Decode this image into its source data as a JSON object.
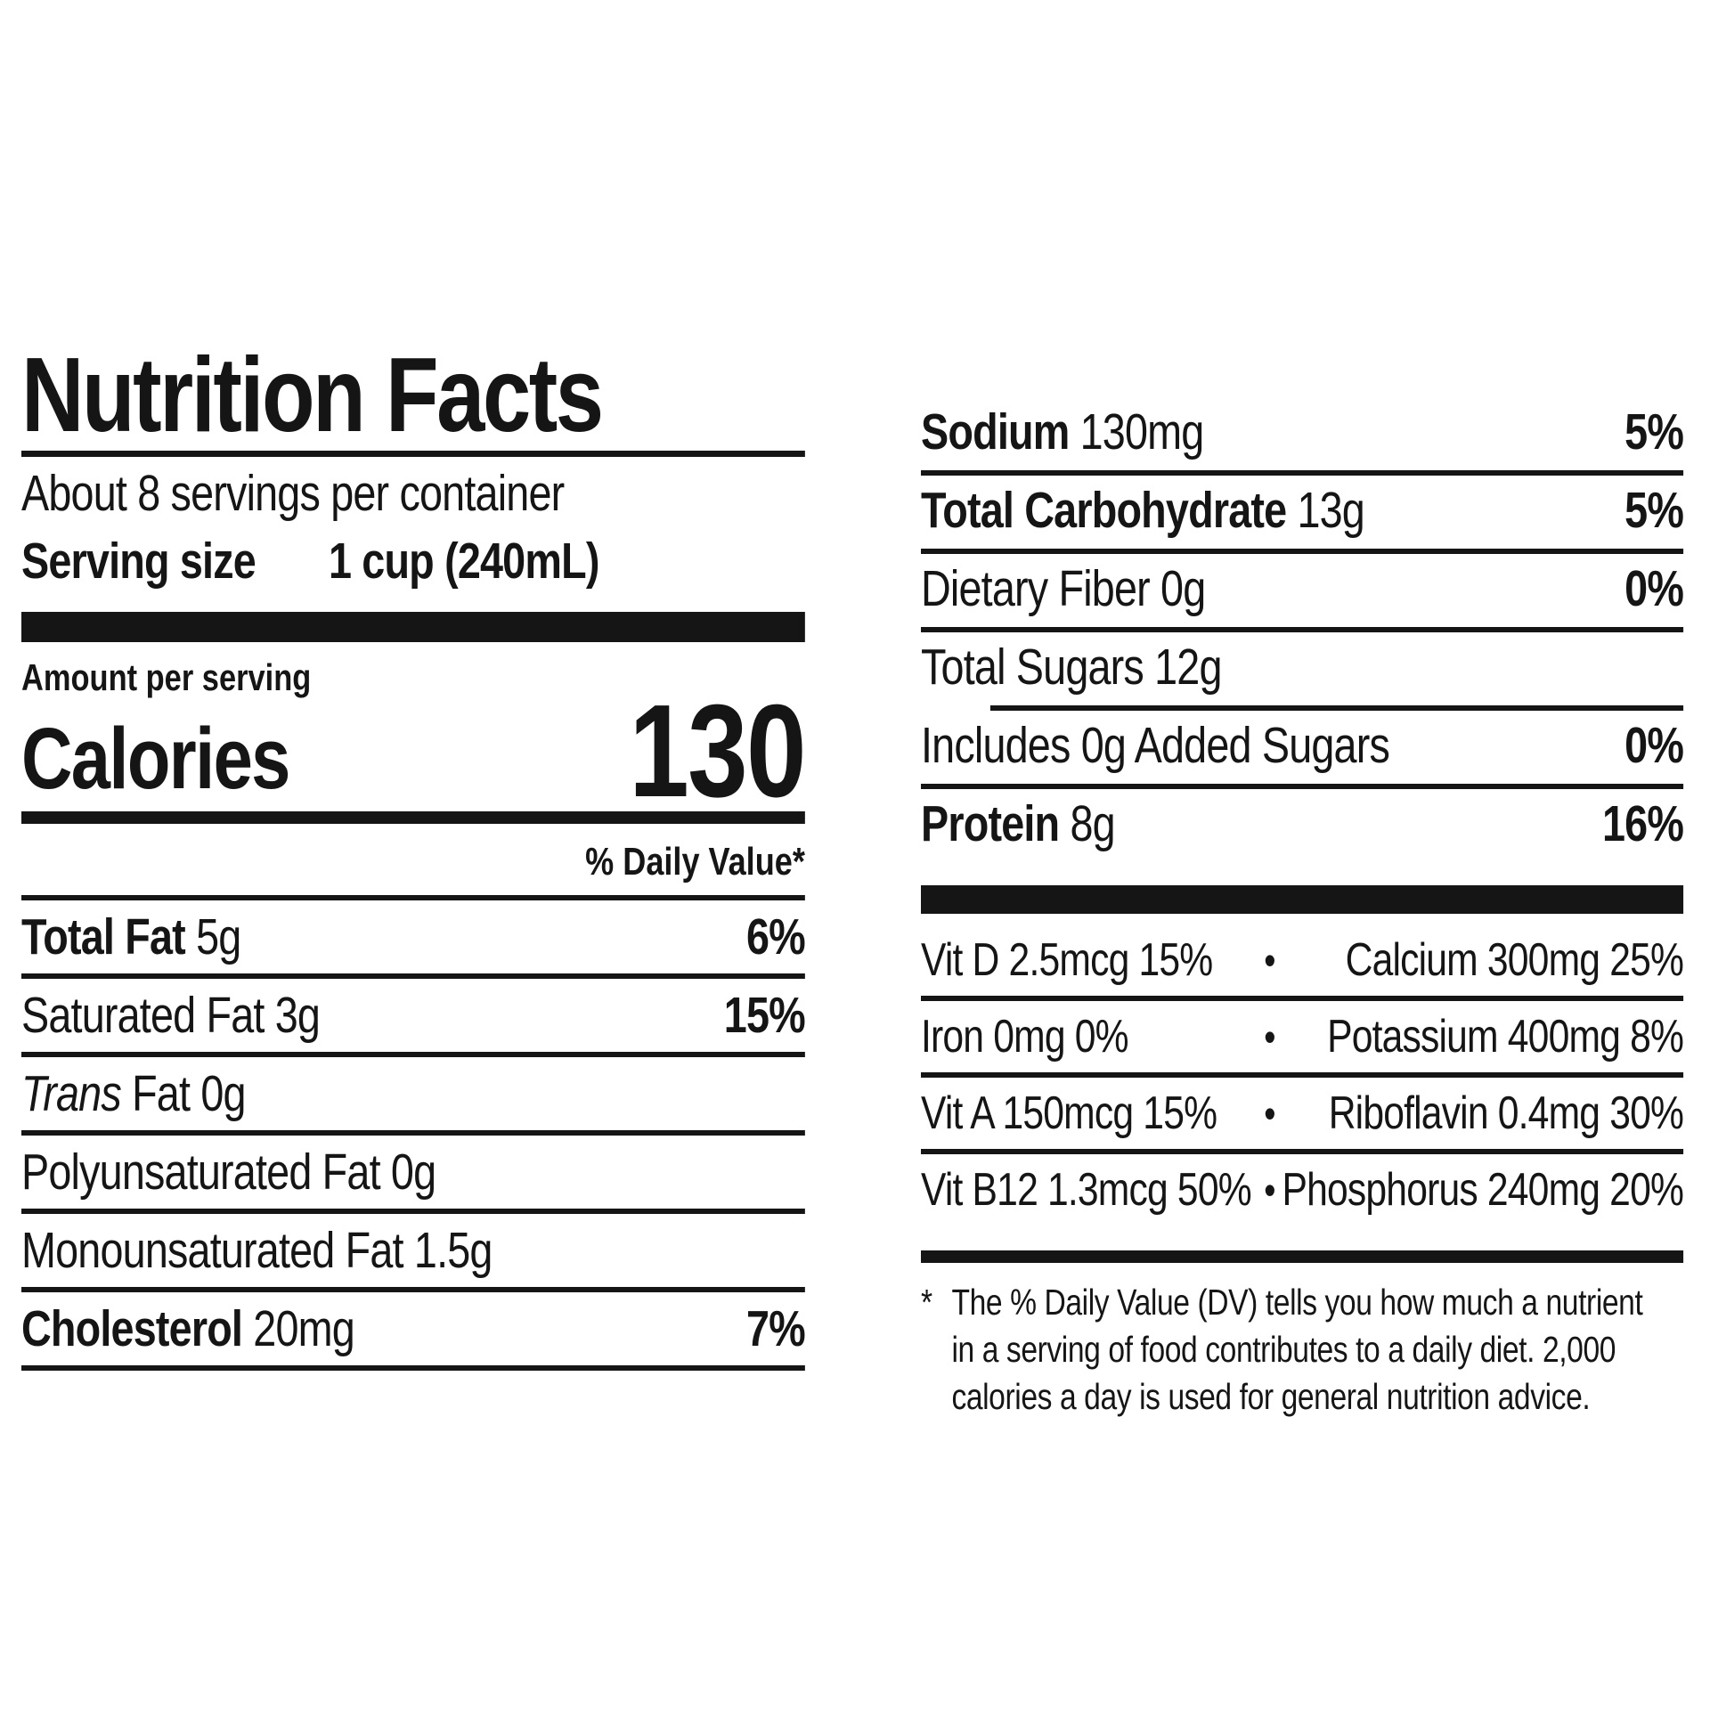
{
  "title": "Nutrition Facts",
  "serving_info": {
    "servings_per_container": "About 8 servings per container",
    "serving_size_label": "Serving size",
    "serving_size_value": "1 cup (240mL)"
  },
  "calories": {
    "section_label": "Amount per serving",
    "label": "Calories",
    "value": "130"
  },
  "daily_value_header": "% Daily Value*",
  "nutrients_left": [
    {
      "name": "Total Fat",
      "amount": "5g",
      "dv": "6%",
      "major": true,
      "indent": 0,
      "rule": "full"
    },
    {
      "name": "Saturated Fat",
      "amount": "3g",
      "dv": "15%",
      "major": false,
      "indent": 1,
      "rule": "full"
    },
    {
      "name_italic": "Trans",
      "name": "Fat",
      "amount": "0g",
      "dv": "",
      "major": false,
      "indent": 1,
      "rule": "full"
    },
    {
      "name": "Polyunsaturated Fat",
      "amount": "0g",
      "dv": "",
      "major": false,
      "indent": 1,
      "rule": "full"
    },
    {
      "name": "Monounsaturated Fat",
      "amount": "1.5g",
      "dv": "",
      "major": false,
      "indent": 1,
      "rule": "full"
    },
    {
      "name": "Cholesterol",
      "amount": "20mg",
      "dv": "7%",
      "major": true,
      "indent": 0,
      "rule": "full"
    }
  ],
  "nutrients_right": [
    {
      "name": "Sodium",
      "amount": "130mg",
      "dv": "5%",
      "major": true,
      "indent": 0,
      "rule": "full"
    },
    {
      "name": "Total Carbohydrate",
      "amount": "13g",
      "dv": "5%",
      "major": true,
      "indent": 0,
      "rule": "full"
    },
    {
      "name": "Dietary Fiber",
      "amount": "0g",
      "dv": "0%",
      "major": false,
      "indent": 1,
      "rule": "full"
    },
    {
      "name": "Total Sugars",
      "amount": "12g",
      "dv": "",
      "major": false,
      "indent": 1,
      "rule": "indent"
    },
    {
      "name": "Includes 0g Added Sugars",
      "amount": "",
      "dv": "0%",
      "major": false,
      "indent": 2,
      "rule": "full"
    },
    {
      "name": "Protein",
      "amount": "8g",
      "dv": "16%",
      "major": true,
      "indent": 0,
      "rule": "none"
    }
  ],
  "bullet": "•",
  "vitamins": [
    {
      "left": "Vit D 2.5mcg 15%",
      "right": "Calcium 300mg 25%"
    },
    {
      "left": "Iron 0mg 0%",
      "right": "Potassium 400mg 8%"
    },
    {
      "left": "Vit A 150mcg 15%",
      "right": "Riboflavin 0.4mg 30%"
    },
    {
      "left": "Vit B12 1.3mcg 50%",
      "right": "Phosphorus 240mg 20%"
    }
  ],
  "footnote": {
    "marker": "*",
    "lines": [
      "The % Daily Value (DV) tells you how much a nutrient",
      "in a serving of food contributes to a daily diet. 2,000",
      "calories a day is used for general nutrition advice."
    ]
  }
}
